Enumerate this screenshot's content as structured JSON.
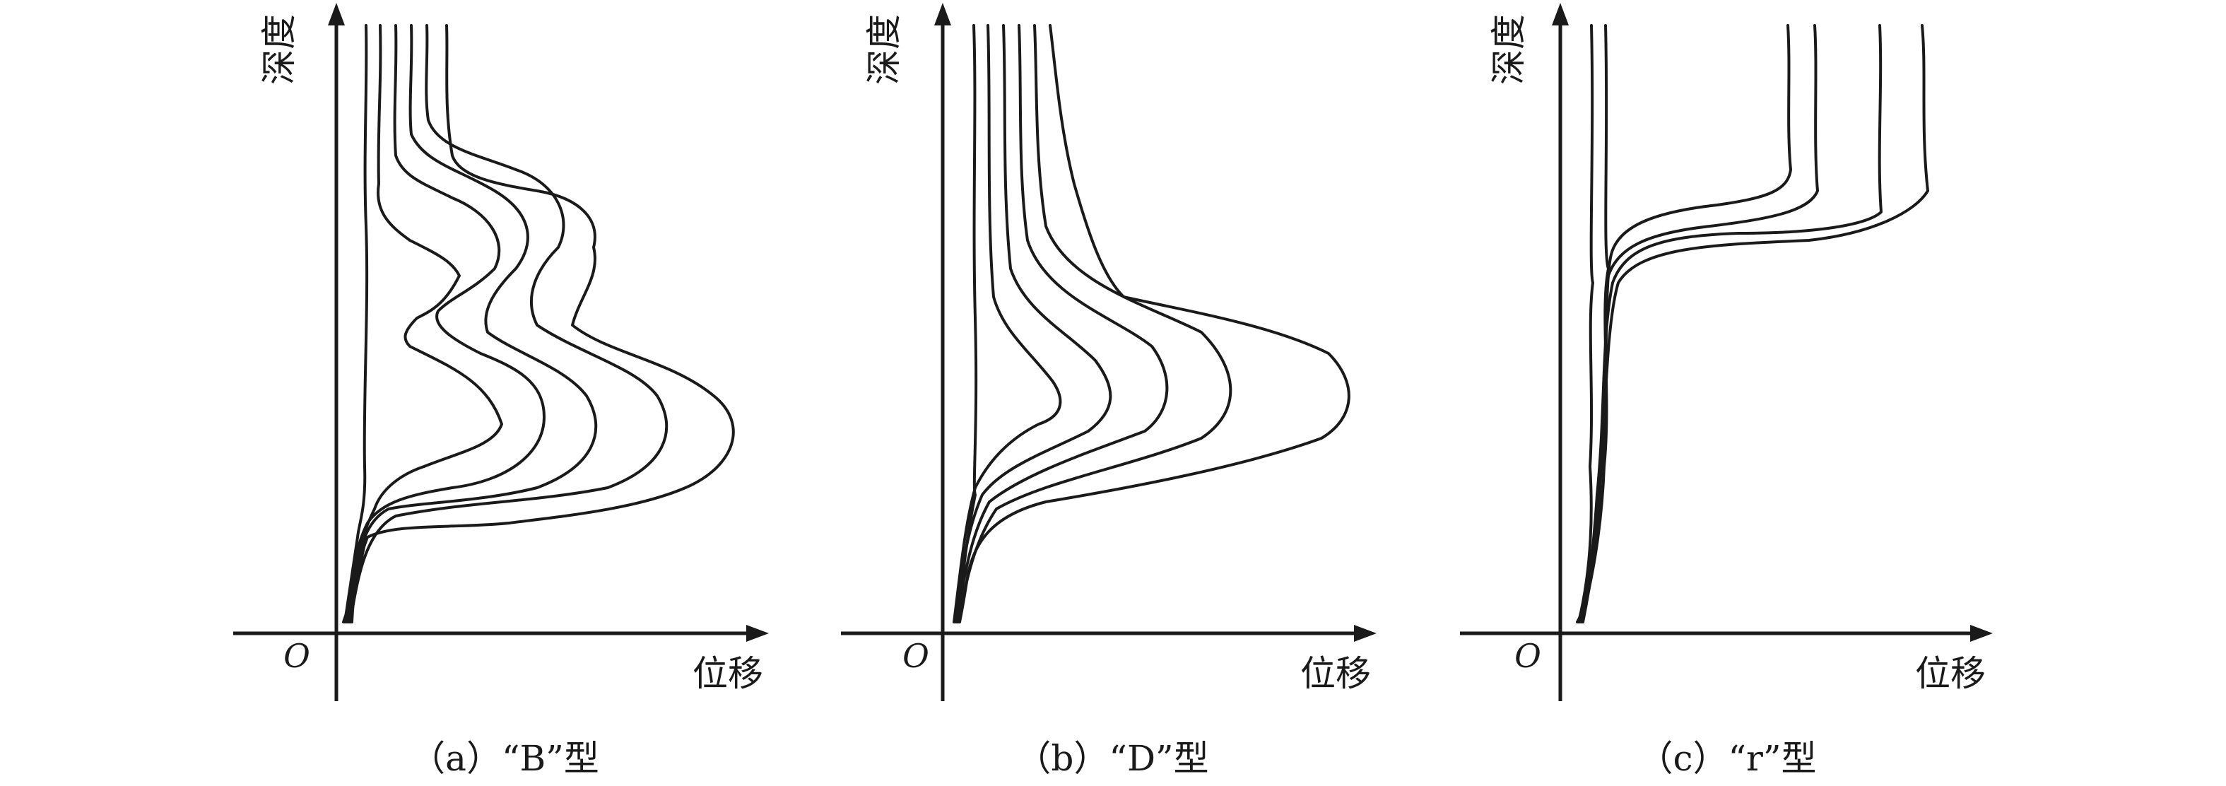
{
  "panels": [
    {
      "id": "a",
      "origin_label": "O",
      "ylabel": "深度",
      "xlabel": "位移",
      "caption": "（a）“B”型"
    },
    {
      "id": "b",
      "origin_label": "O",
      "ylabel": "深度",
      "xlabel": "位移",
      "caption": "（b）“D”型"
    },
    {
      "id": "c",
      "origin_label": "O",
      "ylabel": "深度",
      "xlabel": "位移",
      "caption": "（c）“r”型"
    }
  ],
  "colors": {
    "line": "#1a1a1a",
    "background": "#ffffff"
  }
}
